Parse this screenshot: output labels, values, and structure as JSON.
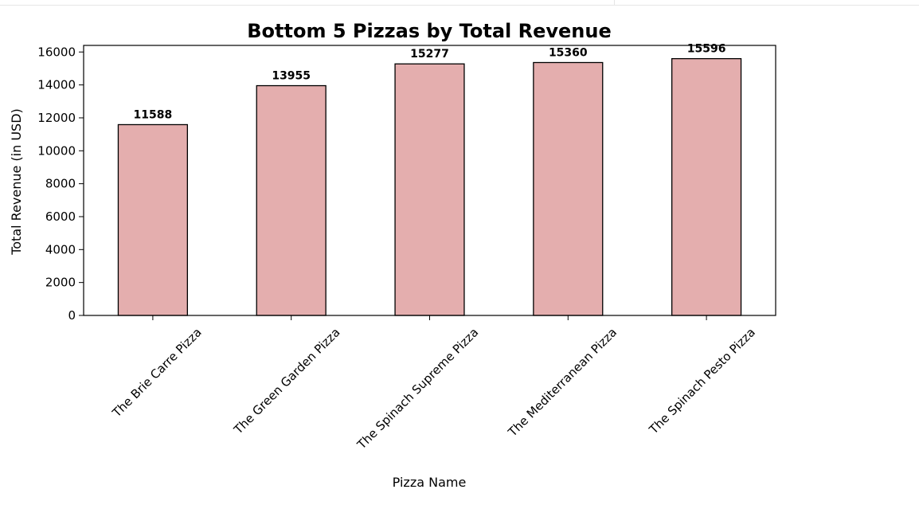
{
  "chart_data": {
    "type": "bar",
    "title": "Bottom 5 Pizzas by Total Revenue",
    "xlabel": "Pizza Name",
    "ylabel": "Total Revenue (in USD)",
    "categories": [
      "The Brie Carre Pizza",
      "The Green Garden Pizza",
      "The Spinach Supreme Pizza",
      "The Mediterranean Pizza",
      "The Spinach Pesto Pizza"
    ],
    "values": [
      11588,
      13955,
      15277,
      15360,
      15596
    ],
    "data_labels": [
      "11588",
      "13955",
      "15277",
      "15360",
      "15596"
    ],
    "ylim": [
      0,
      16400
    ],
    "yticks": [
      0,
      2000,
      4000,
      6000,
      8000,
      10000,
      12000,
      14000,
      16000
    ],
    "ytick_labels": [
      "0",
      "2000",
      "4000",
      "6000",
      "8000",
      "10000",
      "12000",
      "14000",
      "16000"
    ],
    "bar_color": "#e4aeae",
    "edge_color": "#000000",
    "grid": false,
    "legend": "none"
  }
}
